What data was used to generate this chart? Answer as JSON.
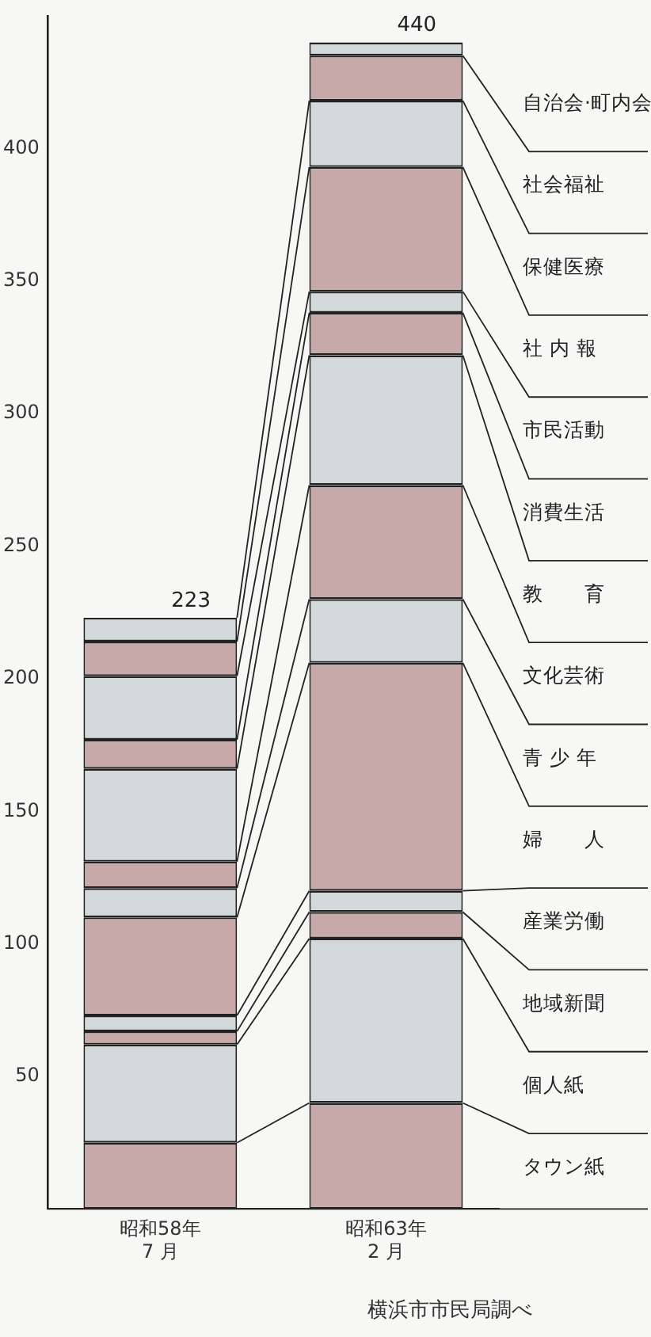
{
  "chart_data": {
    "type": "bar",
    "stacked": true,
    "categories": [
      "昭和58年\n7 月",
      "昭和63年\n2 月"
    ],
    "series": [
      {
        "name": "タウン紙",
        "color": "#c7a9a9",
        "values": [
          25,
          40
        ]
      },
      {
        "name": "個人紙",
        "color": "#d3d8da",
        "values": [
          37,
          62
        ]
      },
      {
        "name": "地域新聞",
        "color": "#c7a9a9",
        "values": [
          5,
          10
        ]
      },
      {
        "name": "産業労働",
        "color": "#d3d8da",
        "values": [
          6,
          8
        ]
      },
      {
        "name": "婦　　人",
        "color": "#c7a9a9",
        "values": [
          37,
          86
        ]
      },
      {
        "name": "青 少 年",
        "color": "#d3d8da",
        "values": [
          11,
          24
        ]
      },
      {
        "name": "文化芸術",
        "color": "#c7a9a9",
        "values": [
          10,
          43
        ]
      },
      {
        "name": "教　　育",
        "color": "#d3d8da",
        "values": [
          35,
          49
        ]
      },
      {
        "name": "消費生活",
        "color": "#c7a9a9",
        "values": [
          11,
          16
        ]
      },
      {
        "name": "市民活動",
        "color": "#d3d8da",
        "values": [
          24,
          8
        ]
      },
      {
        "name": "社 内 報",
        "color": "#c7a9a9",
        "values": [
          13,
          47
        ]
      },
      {
        "name": "保健医療",
        "color": "#d3d8da",
        "values": [
          9,
          25
        ]
      },
      {
        "name": "社会福祉",
        "color": "#c7a9a9",
        "values": [
          0,
          17
        ]
      },
      {
        "name": "自治会·町内会",
        "color": "#d3d8da",
        "values": [
          0,
          5
        ]
      }
    ],
    "totals": [
      "223",
      "440"
    ],
    "ylim": [
      0,
      450
    ],
    "yticks": [
      50,
      100,
      150,
      200,
      250,
      300,
      350,
      400
    ],
    "grid": false,
    "legend": false,
    "annotations": [
      "横浜市市民局調べ"
    ]
  }
}
